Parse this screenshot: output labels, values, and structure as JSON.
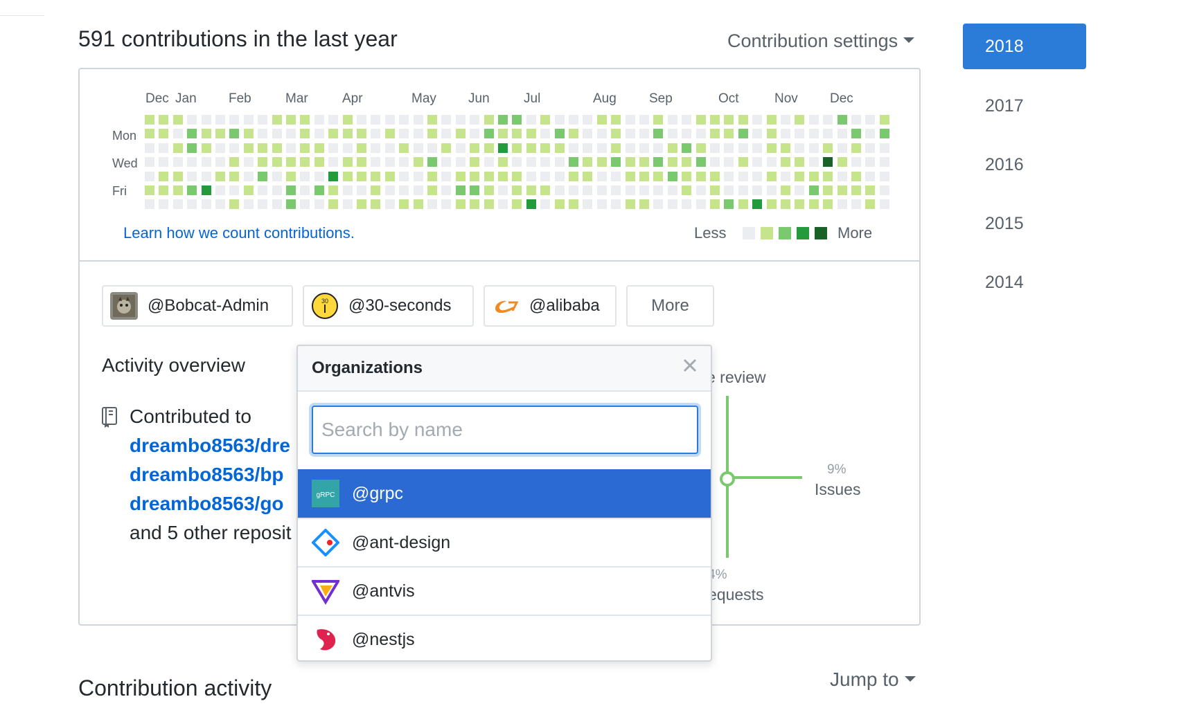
{
  "header": {
    "title": "591 contributions in the last year",
    "settings_label": "Contribution settings"
  },
  "calendar": {
    "months": [
      "Dec",
      "Jan",
      "Feb",
      "Mar",
      "Apr",
      "May",
      "Jun",
      "Jul",
      "Aug",
      "Sep",
      "Oct",
      "Nov",
      "Dec"
    ],
    "day_labels": [
      "Mon",
      "Wed",
      "Fri"
    ],
    "learn_link": "Learn how we count contributions.",
    "legend_less": "Less",
    "legend_more": "More",
    "colors": [
      "#ebedf0",
      "#c6e48b",
      "#7bc96f",
      "#239a3b",
      "#196127"
    ]
  },
  "org_buttons": [
    {
      "label": "@Bobcat-Admin",
      "icon": "bobcat-avatar-icon"
    },
    {
      "label": "@30-seconds",
      "icon": "30-seconds-logo-icon"
    },
    {
      "label": "@alibaba",
      "icon": "alibaba-logo-icon"
    },
    {
      "label": "More"
    }
  ],
  "activity": {
    "title": "Activity overview",
    "contributed_to": "Contributed to",
    "repos": [
      "dreambo8563/dre",
      "dreambo8563/bp",
      "dreambo8563/go"
    ],
    "other_text": "and 5 other reposit",
    "review_label": "e review",
    "issues_pct": "9%",
    "issues_label": "Issues",
    "pr_pct": "4%",
    "pr_label": "equests",
    "chart_color": "#7bc96f"
  },
  "contribution_activity": {
    "title": "Contribution activity",
    "jump_to": "Jump to"
  },
  "years": [
    "2018",
    "2017",
    "2016",
    "2015",
    "2014"
  ],
  "active_year": "2018",
  "dropdown": {
    "title": "Organizations",
    "search_placeholder": "Search by name",
    "items": [
      {
        "label": "@grpc",
        "icon": "grpc-logo-icon",
        "selected": true
      },
      {
        "label": "@ant-design",
        "icon": "ant-design-logo-icon",
        "selected": false
      },
      {
        "label": "@antvis",
        "icon": "antvis-logo-icon",
        "selected": false
      },
      {
        "label": "@nestjs",
        "icon": "nestjs-logo-icon",
        "selected": false
      }
    ]
  }
}
